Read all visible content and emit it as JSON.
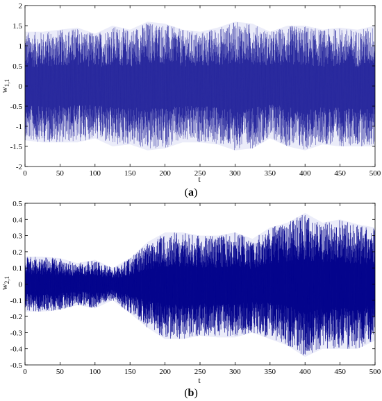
{
  "panels": [
    {
      "caption_letter": "a"
    },
    {
      "caption_letter": "b"
    }
  ],
  "chart_data": [
    {
      "type": "line",
      "title": "",
      "xlabel": "t",
      "ylabel": "w",
      "ylabel_subscript": "1,1",
      "xlim": [
        0,
        500
      ],
      "ylim": [
        -2,
        2
      ],
      "xticks": [
        0,
        50,
        100,
        150,
        200,
        250,
        300,
        350,
        400,
        450,
        500
      ],
      "yticks": [
        -2,
        -1.5,
        -1,
        -0.5,
        0,
        0.5,
        1,
        1.5,
        2
      ],
      "line_color": "#00008b",
      "series": [
        {
          "sampling": "dense oscillation; envelope (upper/lower bounds of w_1,1) sampled every 25 units of t",
          "x": [
            0,
            25,
            50,
            75,
            100,
            125,
            150,
            175,
            200,
            225,
            250,
            275,
            300,
            325,
            350,
            375,
            400,
            425,
            450,
            475,
            500
          ],
          "upper": [
            1.35,
            1.35,
            1.4,
            1.45,
            1.3,
            1.5,
            1.4,
            1.6,
            1.55,
            1.4,
            1.35,
            1.45,
            1.6,
            1.55,
            1.35,
            1.5,
            1.5,
            1.4,
            1.45,
            1.4,
            1.5
          ],
          "lower": [
            -1.35,
            -1.4,
            -1.4,
            -1.4,
            -1.3,
            -1.5,
            -1.45,
            -1.6,
            -1.55,
            -1.4,
            -1.4,
            -1.45,
            -1.6,
            -1.55,
            -1.3,
            -1.5,
            -1.6,
            -1.45,
            -1.5,
            -1.5,
            -1.5
          ]
        }
      ]
    },
    {
      "type": "line",
      "title": "",
      "xlabel": "t",
      "ylabel": "w",
      "ylabel_subscript": "2,1",
      "xlim": [
        0,
        500
      ],
      "ylim": [
        -0.5,
        0.5
      ],
      "xticks": [
        0,
        50,
        100,
        150,
        200,
        250,
        300,
        350,
        400,
        450,
        500
      ],
      "yticks": [
        -0.5,
        -0.4,
        -0.3,
        -0.2,
        -0.1,
        0,
        0.1,
        0.2,
        0.3,
        0.4,
        0.5
      ],
      "line_color": "#00008b",
      "series": [
        {
          "sampling": "dense oscillation; envelope (upper/lower bounds of w_2,1) sampled every 25 units of t",
          "x": [
            0,
            25,
            50,
            75,
            100,
            125,
            150,
            175,
            200,
            225,
            250,
            275,
            300,
            325,
            350,
            375,
            400,
            425,
            450,
            475,
            500
          ],
          "upper": [
            0.17,
            0.17,
            0.16,
            0.13,
            0.15,
            0.1,
            0.16,
            0.26,
            0.32,
            0.32,
            0.3,
            0.3,
            0.32,
            0.28,
            0.35,
            0.38,
            0.44,
            0.38,
            0.4,
            0.37,
            0.35
          ],
          "lower": [
            -0.17,
            -0.17,
            -0.16,
            -0.13,
            -0.15,
            -0.1,
            -0.18,
            -0.27,
            -0.34,
            -0.34,
            -0.32,
            -0.33,
            -0.33,
            -0.3,
            -0.34,
            -0.38,
            -0.45,
            -0.4,
            -0.4,
            -0.4,
            -0.35
          ]
        }
      ]
    }
  ]
}
